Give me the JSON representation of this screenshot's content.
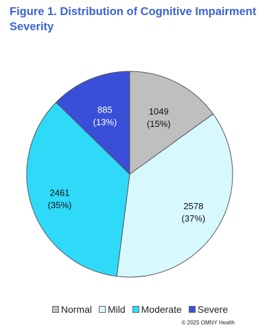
{
  "chart_data": {
    "type": "pie",
    "title": "Figure 1. Distribution of Cognitive Impairment Severity",
    "slices": [
      {
        "label": "Normal",
        "value": 1049,
        "percent_label": "(15%)",
        "color": "#bfbfbf"
      },
      {
        "label": "Mild",
        "value": 2578,
        "percent_label": "(37%)",
        "color": "#d7f8fd"
      },
      {
        "label": "Moderate",
        "value": 2461,
        "percent_label": "(35%)",
        "color": "#2fdaf8"
      },
      {
        "label": "Severe",
        "value": 885,
        "percent_label": "(13%)",
        "color": "#3a4fd8"
      }
    ],
    "legend_position": "bottom",
    "start_angle": "12 o'clock, clockwise",
    "credit": "© 2025 OMNY Health"
  }
}
